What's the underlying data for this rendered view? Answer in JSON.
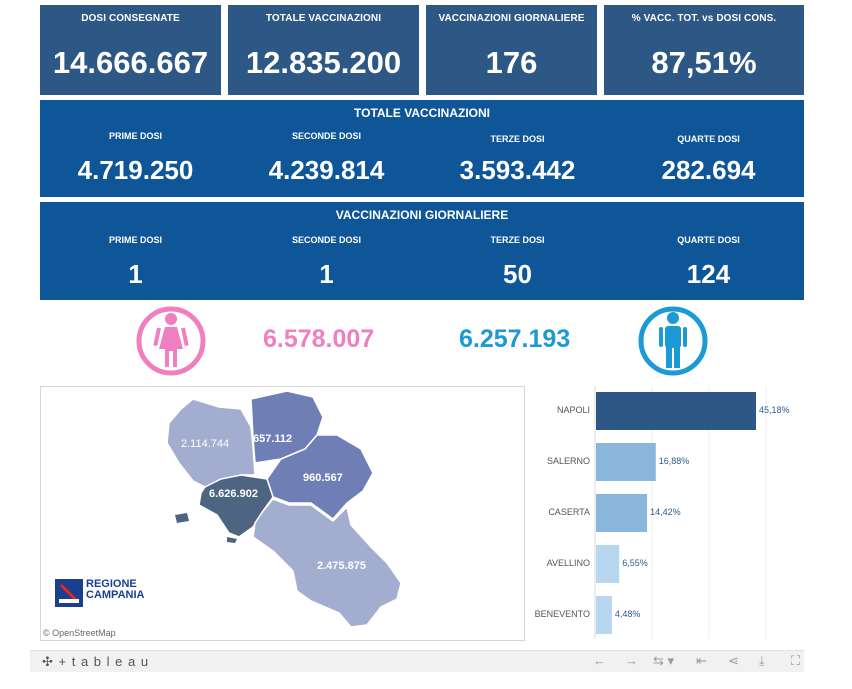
{
  "kpis": [
    {
      "label": "DOSI  CONSEGNATE",
      "value": "14.666.667"
    },
    {
      "label": "TOTALE VACCINAZIONI",
      "value": "12.835.200"
    },
    {
      "label": "VACCINAZIONI GIORNALIERE",
      "value": "176"
    },
    {
      "label": "% VACC. TOT. vs DOSI CONS.",
      "value": "87,51%"
    }
  ],
  "totale": {
    "title": "TOTALE VACCINAZIONI",
    "cols": [
      {
        "label": "PRIME DOSI",
        "value": "4.719.250"
      },
      {
        "label": "SECONDE DOSI",
        "value": "4.239.814"
      },
      {
        "label": "TERZE DOSI",
        "value": "3.593.442"
      },
      {
        "label": "QUARTE DOSI",
        "value": "282.694"
      }
    ]
  },
  "giornaliere": {
    "title": "VACCINAZIONI GIORNALIERE",
    "cols": [
      {
        "label": "PRIME DOSI",
        "value": "1"
      },
      {
        "label": "SECONDE DOSI",
        "value": "1"
      },
      {
        "label": "TERZE DOSI",
        "value": "50"
      },
      {
        "label": "QUARTE DOSI",
        "value": "124"
      }
    ]
  },
  "gender": {
    "female_value": "6.578.007",
    "male_value": "6.257.193",
    "female_color": "#f07fbf",
    "male_color": "#1b9ad6",
    "female_icon": "female-person-icon",
    "male_icon": "male-person-icon"
  },
  "map": {
    "regions": [
      {
        "name": "Caserta",
        "label": "2.114.744"
      },
      {
        "name": "Benevento",
        "label": "657.112"
      },
      {
        "name": "Avellino",
        "label": "960.567"
      },
      {
        "name": "Napoli",
        "label": "6.626.902"
      },
      {
        "name": "Salerno",
        "label": "2.475.875"
      }
    ],
    "logo_text_1": "REGIONE",
    "logo_text_2": "CAMPANIA",
    "attribution": "© OpenStreetMap"
  },
  "chart_data": {
    "type": "bar",
    "orientation": "horizontal",
    "categories": [
      "NAPOLI",
      "SALERNO",
      "CASERTA",
      "AVELLINO",
      "BENEVENTO"
    ],
    "values": [
      45.18,
      16.88,
      14.42,
      6.55,
      4.48
    ],
    "value_labels": [
      "45,18%",
      "16,88%",
      "14,42%",
      "6,55%",
      "4,48%"
    ],
    "colors": [
      "#2d5785",
      "#8ab6dc",
      "#8ab6dc",
      "#b6d7ef",
      "#b6d7ef"
    ]
  },
  "toolbar": {
    "brand": "+ t a b l e a u",
    "icons": [
      "undo-icon",
      "redo-icon",
      "revert-icon",
      "pause-icon",
      "share-icon",
      "download-icon",
      "fullscreen-icon"
    ]
  }
}
